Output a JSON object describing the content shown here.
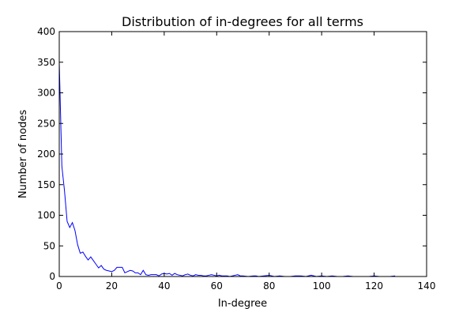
{
  "chart_data": {
    "type": "line",
    "title": "Distribution of in-degrees for all terms",
    "xlabel": "In-degree",
    "ylabel": "Number of nodes",
    "xlim": [
      0,
      140
    ],
    "ylim": [
      0,
      400
    ],
    "xticks": [
      "0",
      "20",
      "40",
      "60",
      "80",
      "100",
      "120",
      "140"
    ],
    "yticks": [
      "0",
      "50",
      "100",
      "150",
      "200",
      "250",
      "300",
      "350",
      "400"
    ],
    "grid": false,
    "line_color": "#0000ff",
    "series": [
      {
        "x": [
          0,
          1,
          2,
          3,
          4,
          5,
          6,
          7,
          8,
          9,
          10,
          11,
          12,
          13,
          14,
          15,
          16,
          17,
          18,
          19,
          20,
          21,
          22,
          23,
          24,
          25,
          26,
          27,
          28,
          29,
          30,
          31,
          32,
          33,
          34,
          35,
          36,
          37,
          38,
          39,
          40,
          41,
          42,
          43,
          44,
          45,
          46,
          47,
          48,
          49,
          50,
          51,
          52,
          53,
          54,
          55,
          56,
          57,
          58,
          59,
          60,
          61,
          62,
          63,
          64,
          65,
          66,
          67,
          68,
          69,
          70,
          72,
          74,
          75,
          76,
          78,
          80,
          82,
          84,
          86,
          88,
          90,
          92,
          94,
          96,
          98,
          100,
          102,
          104,
          106,
          108,
          110,
          112,
          114,
          116,
          118,
          120,
          122,
          124,
          126,
          128
        ],
        "y": [
          350,
          180,
          140,
          90,
          80,
          88,
          75,
          52,
          38,
          40,
          33,
          27,
          32,
          26,
          20,
          14,
          18,
          12,
          10,
          9,
          8,
          10,
          15,
          15,
          15,
          6,
          8,
          10,
          9,
          6,
          6,
          3,
          10,
          3,
          2,
          3,
          3,
          3,
          1,
          4,
          5,
          4,
          5,
          2,
          5,
          3,
          2,
          1,
          3,
          4,
          2,
          1,
          3,
          2,
          2,
          1,
          1,
          2,
          3,
          2,
          1,
          2,
          1,
          1,
          1,
          0,
          1,
          2,
          3,
          1,
          1,
          0,
          1,
          1,
          0,
          1,
          2,
          0,
          1,
          0,
          0,
          1,
          1,
          0,
          2,
          0,
          1,
          0,
          1,
          0,
          0,
          1,
          0,
          0,
          0,
          0,
          1,
          0,
          0,
          0,
          1
        ]
      }
    ]
  }
}
